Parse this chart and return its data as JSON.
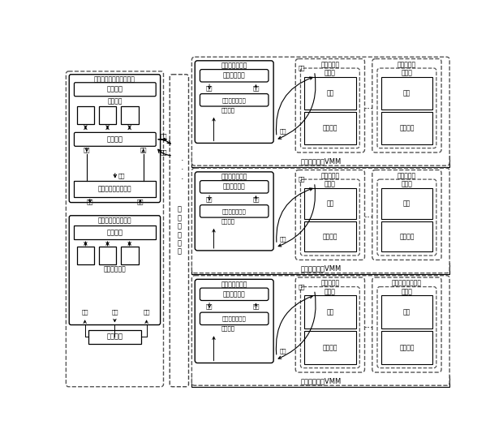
{
  "bg_color": "#ffffff",
  "rows": [
    {
      "vmm_label": "虚拟机管理器VMM",
      "mon1_title": "被监控系统",
      "mon2_title": "被监控系统",
      "mon1_inner": "虚拟机",
      "mon2_inner": "虚拟机"
    },
    {
      "vmm_label": "虚拟机管理器VMM",
      "mon1_title": "被监控系统",
      "mon2_title": "被监控系统",
      "mon1_inner": "虚拟机",
      "mon2_inner": "虚拟机"
    },
    {
      "vmm_label": "虚拟机处理器VMM",
      "mon1_title": "被监控系统",
      "mon2_title": "本地数据采集单元",
      "mon1_inner": "虚拟机",
      "mon2_inner": "虚拟机"
    }
  ],
  "collector_title": "本地数据采集器",
  "data_module_label": "数据采集模块",
  "os_interface_label": "操作系统接口厂",
  "hardware_label": "硬件状态",
  "cmd_label": "命令",
  "feedback_label": "反馈",
  "request_label": "请求",
  "response_label": "响应",
  "app_label": "应用",
  "os_label": "操作系统",
  "data_relay_label": "数\n据\n收\n发\n单\n元",
  "proc_sys_title": "平台安全数据处理子系统",
  "policy_engine_label": "策略引擎",
  "policy_module_label": "策略模块",
  "policy_arch_label": "策略架构",
  "storage_label": "安全数据存储子系统",
  "report_sys_title": "平台安全报告子系统",
  "report_arch_label": "报告架构",
  "report_gen_label": "报告生成模块",
  "report_display_label": "报告显示",
  "cmd_arrow_label": "命令",
  "feedback_arrow_label": "反馈",
  "write_label": "写入",
  "query_label": "查询",
  "config_label": "配置",
  "req_label": "请求",
  "resp_label": "响应",
  "fwd_label": "转送",
  "dots": "..."
}
